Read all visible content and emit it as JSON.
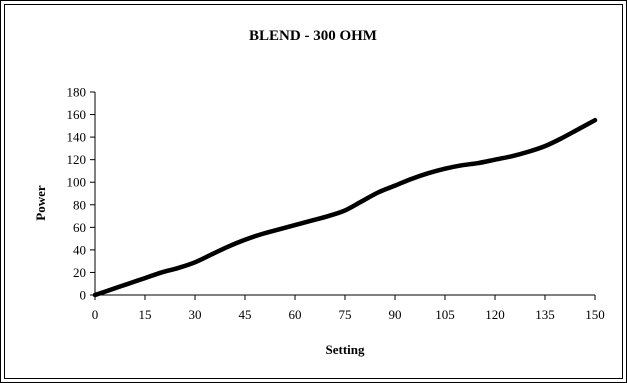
{
  "chart_data": {
    "type": "line",
    "title": "BLEND - 300 OHM",
    "xlabel": "Setting",
    "ylabel": "Power",
    "xlim": [
      0,
      150
    ],
    "ylim": [
      0,
      180
    ],
    "x_ticks": [
      0,
      15,
      30,
      45,
      60,
      75,
      90,
      105,
      120,
      135,
      150
    ],
    "y_ticks": [
      0,
      20,
      40,
      60,
      80,
      100,
      120,
      140,
      160,
      180
    ],
    "grid": false,
    "legend": "none",
    "series": [
      {
        "color": "#000000",
        "x": [
          0,
          5,
          10,
          15,
          20,
          25,
          30,
          35,
          40,
          45,
          50,
          55,
          60,
          65,
          70,
          75,
          80,
          85,
          90,
          95,
          100,
          105,
          110,
          115,
          120,
          125,
          130,
          135,
          140,
          145,
          150
        ],
        "y": [
          0,
          5,
          10,
          15,
          20,
          24,
          29,
          36,
          43,
          49,
          54,
          58,
          62,
          66,
          70,
          75,
          83,
          91,
          97,
          103,
          108,
          112,
          115,
          117,
          120,
          123,
          127,
          132,
          139,
          147,
          155
        ]
      }
    ]
  }
}
